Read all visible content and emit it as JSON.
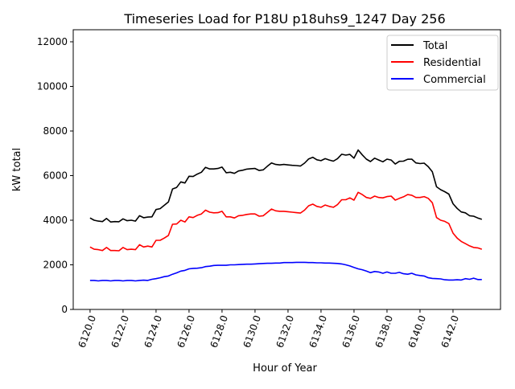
{
  "chart_data": {
    "type": "line",
    "title": "Timeseries Load for P18U p18uhs9_1247  Day 256",
    "xlabel": "Hour of Year",
    "ylabel": "kW total",
    "xlim": [
      6118.98,
      6144.88
    ],
    "ylim": [
      0,
      12540
    ],
    "x_start": 6120,
    "x_step": 0.25,
    "x_ticks": [
      6120,
      6122,
      6124,
      6126,
      6128,
      6130,
      6132,
      6134,
      6136,
      6138,
      6140,
      6142
    ],
    "x_tick_labels": [
      "6120.0",
      "6122.0",
      "6124.0",
      "6126.0",
      "6128.0",
      "6130.0",
      "6132.0",
      "6134.0",
      "6136.0",
      "6138.0",
      "6140.0",
      "6142.0"
    ],
    "y_ticks": [
      0,
      2000,
      4000,
      6000,
      8000,
      10000,
      12000
    ],
    "y_tick_labels": [
      "0",
      "2000",
      "4000",
      "6000",
      "8000",
      "10000",
      "12000"
    ],
    "grid": false,
    "legend_placement": "top-right",
    "series": [
      {
        "name": "Total",
        "color": "#000000",
        "values": [
          4100,
          4000,
          3960,
          3940,
          4080,
          3920,
          3940,
          3930,
          4060,
          3980,
          4000,
          3960,
          4200,
          4110,
          4140,
          4150,
          4480,
          4520,
          4670,
          4820,
          5400,
          5470,
          5720,
          5670,
          5970,
          5960,
          6070,
          6150,
          6370,
          6300,
          6300,
          6320,
          6380,
          6130,
          6150,
          6100,
          6210,
          6240,
          6290,
          6310,
          6320,
          6230,
          6260,
          6420,
          6570,
          6500,
          6480,
          6500,
          6480,
          6460,
          6450,
          6430,
          6560,
          6750,
          6820,
          6710,
          6670,
          6760,
          6700,
          6650,
          6760,
          6960,
          6920,
          6950,
          6780,
          7150,
          6930,
          6740,
          6630,
          6780,
          6700,
          6620,
          6740,
          6700,
          6520,
          6640,
          6650,
          6730,
          6740,
          6570,
          6540,
          6560,
          6400,
          6170,
          5500,
          5370,
          5280,
          5170,
          4740,
          4530,
          4370,
          4330,
          4200,
          4180,
          4100,
          4040
        ]
      },
      {
        "name": "Residential",
        "color": "#ff0000",
        "values": [
          2800,
          2700,
          2680,
          2640,
          2780,
          2640,
          2640,
          2630,
          2780,
          2680,
          2700,
          2680,
          2900,
          2800,
          2840,
          2800,
          3100,
          3100,
          3200,
          3320,
          3820,
          3830,
          4000,
          3920,
          4150,
          4120,
          4220,
          4280,
          4450,
          4360,
          4330,
          4340,
          4400,
          4150,
          4150,
          4100,
          4200,
          4220,
          4260,
          4280,
          4280,
          4180,
          4200,
          4350,
          4500,
          4420,
          4400,
          4400,
          4380,
          4360,
          4340,
          4320,
          4450,
          4650,
          4720,
          4620,
          4580,
          4680,
          4620,
          4580,
          4700,
          4920,
          4920,
          5000,
          4900,
          5250,
          5150,
          5020,
          4980,
          5080,
          5020,
          5000,
          5060,
          5080,
          4900,
          4980,
          5050,
          5150,
          5120,
          5020,
          5020,
          5060,
          4980,
          4780,
          4120,
          4000,
          3950,
          3850,
          3420,
          3200,
          3050,
          2950,
          2850,
          2780,
          2760,
          2700
        ]
      },
      {
        "name": "Commercial",
        "color": "#0000ff",
        "values": [
          1300,
          1300,
          1280,
          1300,
          1300,
          1280,
          1300,
          1300,
          1280,
          1300,
          1300,
          1280,
          1300,
          1310,
          1300,
          1350,
          1380,
          1420,
          1470,
          1500,
          1580,
          1640,
          1720,
          1750,
          1820,
          1840,
          1850,
          1870,
          1920,
          1940,
          1970,
          1980,
          1980,
          1980,
          2000,
          2000,
          2010,
          2020,
          2030,
          2030,
          2040,
          2050,
          2060,
          2070,
          2070,
          2080,
          2080,
          2100,
          2100,
          2100,
          2110,
          2110,
          2110,
          2100,
          2100,
          2090,
          2090,
          2080,
          2080,
          2070,
          2060,
          2040,
          2000,
          1950,
          1880,
          1820,
          1780,
          1720,
          1650,
          1700,
          1680,
          1620,
          1680,
          1620,
          1620,
          1660,
          1600,
          1580,
          1620,
          1550,
          1520,
          1500,
          1420,
          1390,
          1380,
          1370,
          1330,
          1320,
          1320,
          1330,
          1320,
          1380,
          1350,
          1400,
          1340,
          1340
        ]
      }
    ]
  }
}
